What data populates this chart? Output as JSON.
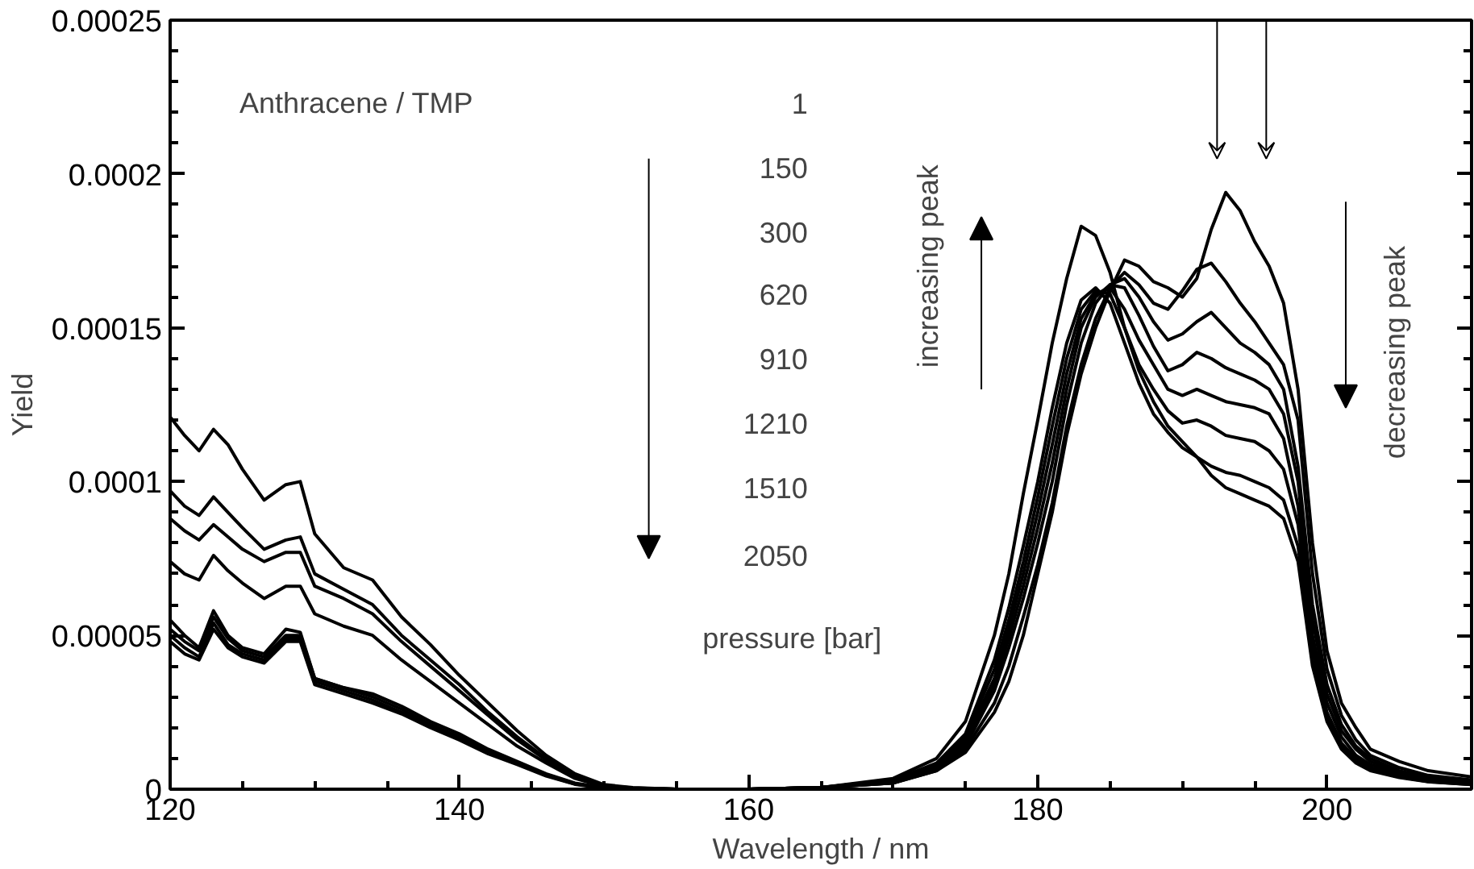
{
  "chart_data": {
    "type": "line",
    "xlabel": "Wavelength / nm",
    "ylabel": "Yield",
    "xlim": [
      120,
      210
    ],
    "xticks": [
      120,
      140,
      160,
      180,
      200
    ],
    "ylim": [
      0,
      0.00025
    ],
    "yticks": [
      0,
      {
        "value": 5e-05,
        "label": "0.00005"
      },
      {
        "value": 0.0001,
        "label": "0.0001"
      },
      {
        "value": 0.00015,
        "label": "0.00015"
      },
      {
        "value": 0.0002,
        "label": "0.0002"
      },
      {
        "value": 0.00025,
        "label": "0.00025"
      }
    ],
    "grid": false,
    "marker": "none",
    "line_style": "solid",
    "annotations": [
      "Anthracene / TMP",
      "1",
      "150",
      "300",
      "620",
      "910",
      "1210",
      "1510",
      "2050",
      "pressure [bar]",
      "increasing peak",
      "decreasing peak"
    ],
    "x": [
      120,
      121,
      122,
      123,
      124,
      125,
      126.5,
      128,
      129,
      130,
      132,
      134,
      136,
      138,
      140,
      142,
      144,
      146,
      148,
      150,
      152,
      155,
      160,
      165,
      170,
      173,
      175,
      177,
      178,
      179,
      180,
      181,
      182,
      183,
      184,
      185,
      186,
      187,
      188,
      189,
      190,
      191,
      192,
      193,
      194,
      195,
      196,
      197,
      198,
      199,
      200,
      201,
      202,
      203,
      205,
      207,
      210
    ],
    "series": [
      {
        "color": "#000000",
        "values": [
          0.000121,
          0.000115,
          0.00011,
          0.000117,
          0.000112,
          0.000104,
          9.4e-05,
          9.9e-05,
          0.0001,
          8.3e-05,
          7.2e-05,
          6.8e-05,
          5.6e-05,
          4.7e-05,
          3.7e-05,
          2.8e-05,
          1.9e-05,
          1.1e-05,
          5e-06,
          1.5e-06,
          5e-07,
          0,
          0,
          5e-07,
          2e-06,
          6e-06,
          1.2e-05,
          2.5e-05,
          3.5e-05,
          5e-05,
          7e-05,
          9e-05,
          0.000115,
          0.000135,
          0.00015,
          0.000162,
          0.000172,
          0.00017,
          0.000165,
          0.000163,
          0.00016,
          0.000166,
          0.000182,
          0.000194,
          0.000188,
          0.000178,
          0.00017,
          0.000158,
          0.00013,
          8e-05,
          4.5e-05,
          2.8e-05,
          2e-05,
          1.3e-05,
          9e-06,
          6e-06,
          4e-06
        ]
      },
      {
        "color": "#000000",
        "values": [
          9.7e-05,
          9.2e-05,
          8.9e-05,
          9.5e-05,
          9e-05,
          8.5e-05,
          7.8e-05,
          8.1e-05,
          8.2e-05,
          7e-05,
          6.5e-05,
          6e-05,
          5e-05,
          4.2e-05,
          3.4e-05,
          2.5e-05,
          1.7e-05,
          1e-05,
          4.5e-06,
          1.2e-06,
          4e-07,
          0,
          0,
          5e-07,
          2e-06,
          6e-06,
          1.3e-05,
          2.8e-05,
          4e-05,
          5.6e-05,
          7.3e-05,
          9.3e-05,
          0.000118,
          0.000138,
          0.000153,
          0.000163,
          0.000168,
          0.000164,
          0.000158,
          0.000156,
          0.000162,
          0.000169,
          0.000171,
          0.000165,
          0.000158,
          0.000152,
          0.000145,
          0.000138,
          0.00012,
          7e-05,
          3.9e-05,
          2.4e-05,
          1.6e-05,
          1.1e-05,
          7e-06,
          4.5e-06,
          3e-06
        ]
      },
      {
        "color": "#000000",
        "values": [
          8.8e-05,
          8.4e-05,
          8.1e-05,
          8.6e-05,
          8.2e-05,
          7.8e-05,
          7.4e-05,
          7.7e-05,
          7.7e-05,
          6.6e-05,
          6.2e-05,
          5.7e-05,
          4.8e-05,
          4e-05,
          3.2e-05,
          2.4e-05,
          1.6e-05,
          9.5e-06,
          4e-06,
          1e-06,
          3e-07,
          0,
          0,
          5e-07,
          2e-06,
          6.5e-06,
          1.4e-05,
          3.2e-05,
          4.6e-05,
          6.2e-05,
          8e-05,
          0.0001,
          0.000125,
          0.000145,
          0.000158,
          0.000164,
          0.000166,
          0.00016,
          0.000152,
          0.000146,
          0.000148,
          0.000152,
          0.000155,
          0.00015,
          0.000145,
          0.000142,
          0.000138,
          0.00013,
          0.000105,
          6e-05,
          3.4e-05,
          2.1e-05,
          1.4e-05,
          1e-05,
          6e-06,
          4e-06,
          2.5e-06
        ]
      },
      {
        "color": "#000000",
        "values": [
          7.4e-05,
          7e-05,
          6.8e-05,
          7.6e-05,
          7.1e-05,
          6.7e-05,
          6.2e-05,
          6.6e-05,
          6.6e-05,
          5.7e-05,
          5.3e-05,
          5e-05,
          4.2e-05,
          3.5e-05,
          2.8e-05,
          2.1e-05,
          1.4e-05,
          8.5e-06,
          3.5e-06,
          8e-07,
          2e-07,
          0,
          0,
          5e-07,
          2.5e-06,
          7e-06,
          1.5e-05,
          3.4e-05,
          4.9e-05,
          6.6e-05,
          8.5e-05,
          0.000106,
          0.00013,
          0.00015,
          0.00016,
          0.000164,
          0.000163,
          0.000154,
          0.000144,
          0.000136,
          0.000138,
          0.000142,
          0.00014,
          0.000137,
          0.000135,
          0.000133,
          0.00013,
          0.000122,
          0.0001,
          5.5e-05,
          3.1e-05,
          1.9e-05,
          1.3e-05,
          9e-06,
          5.5e-06,
          3.5e-06,
          2e-06
        ]
      },
      {
        "color": "#000000",
        "values": [
          5.5e-05,
          5e-05,
          4.6e-05,
          5.8e-05,
          5e-05,
          4.6e-05,
          4.4e-05,
          5.2e-05,
          5.1e-05,
          3.6e-05,
          3.3e-05,
          3.1e-05,
          2.7e-05,
          2.2e-05,
          1.8e-05,
          1.3e-05,
          9e-06,
          5e-06,
          2e-06,
          5e-07,
          1e-07,
          0,
          0,
          5e-07,
          2.5e-06,
          7.5e-06,
          1.6e-05,
          3.6e-05,
          5.2e-05,
          7e-05,
          9e-05,
          0.000112,
          0.000135,
          0.000153,
          0.000161,
          0.000163,
          0.000156,
          0.000146,
          0.000138,
          0.00013,
          0.000128,
          0.00013,
          0.000128,
          0.000126,
          0.000125,
          0.000124,
          0.000122,
          0.000114,
          9.2e-05,
          5e-05,
          2.8e-05,
          1.7e-05,
          1.1e-05,
          8e-06,
          5e-06,
          3e-06,
          2e-06
        ]
      },
      {
        "color": "#000000",
        "values": [
          5.2e-05,
          4.8e-05,
          4.5e-05,
          5.6e-05,
          4.9e-05,
          4.5e-05,
          4.3e-05,
          5e-05,
          5e-05,
          3.6e-05,
          3.3e-05,
          3e-05,
          2.6e-05,
          2.1e-05,
          1.7e-05,
          1.25e-05,
          8.5e-06,
          4.8e-06,
          1.8e-06,
          4e-07,
          1e-07,
          0,
          0,
          5e-07,
          3e-06,
          8e-06,
          1.7e-05,
          3.9e-05,
          5.5e-05,
          7.4e-05,
          9.5e-05,
          0.000118,
          0.00014,
          0.000156,
          0.000162,
          0.000161,
          0.00015,
          0.000138,
          0.00013,
          0.000123,
          0.000119,
          0.00012,
          0.000118,
          0.000115,
          0.000114,
          0.000113,
          0.00011,
          0.000104,
          8.6e-05,
          4.6e-05,
          2.5e-05,
          1.5e-05,
          1e-05,
          7e-06,
          4.5e-06,
          2.8e-06,
          1.8e-06
        ]
      },
      {
        "color": "#000000",
        "values": [
          5e-05,
          4.6e-05,
          4.3e-05,
          5.4e-05,
          4.7e-05,
          4.4e-05,
          4.2e-05,
          4.9e-05,
          4.9e-05,
          3.5e-05,
          3.2e-05,
          2.9e-05,
          2.5e-05,
          2.05e-05,
          1.65e-05,
          1.2e-05,
          8.2e-06,
          4.5e-06,
          1.7e-06,
          4e-07,
          1e-07,
          0,
          0,
          5e-07,
          3e-06,
          8.5e-06,
          1.8e-05,
          4.2e-05,
          5.9e-05,
          7.9e-05,
          0.0001,
          0.000124,
          0.000145,
          0.000159,
          0.000163,
          0.000158,
          0.000145,
          0.000132,
          0.000122,
          0.000116,
          0.000111,
          0.000108,
          0.000105,
          0.000103,
          0.000102,
          0.0001,
          9.8e-05,
          9.4e-05,
          7.9e-05,
          4.2e-05,
          2.3e-05,
          1.4e-05,
          9e-06,
          6.5e-06,
          4e-06,
          2.5e-06,
          1.5e-06
        ]
      },
      {
        "color": "#000000",
        "values": [
          4.8e-05,
          4.4e-05,
          4.2e-05,
          5.2e-05,
          4.6e-05,
          4.3e-05,
          4.1e-05,
          4.8e-05,
          4.8e-05,
          3.4e-05,
          3.1e-05,
          2.8e-05,
          2.45e-05,
          2e-05,
          1.6e-05,
          1.15e-05,
          8e-06,
          4.3e-06,
          1.6e-06,
          3e-07,
          1e-07,
          0,
          0,
          5e-07,
          3.5e-06,
          1e-05,
          2.2e-05,
          5e-05,
          7e-05,
          9.6e-05,
          0.00012,
          0.000145,
          0.000166,
          0.000183,
          0.00018,
          0.000168,
          0.00015,
          0.000136,
          0.000126,
          0.000118,
          0.000113,
          0.000108,
          0.000102,
          9.8e-05,
          9.6e-05,
          9.4e-05,
          9.2e-05,
          8.8e-05,
          7.4e-05,
          4e-05,
          2.2e-05,
          1.3e-05,
          8.5e-06,
          6e-06,
          3.8e-06,
          2.4e-06,
          1.5e-06
        ]
      }
    ]
  }
}
